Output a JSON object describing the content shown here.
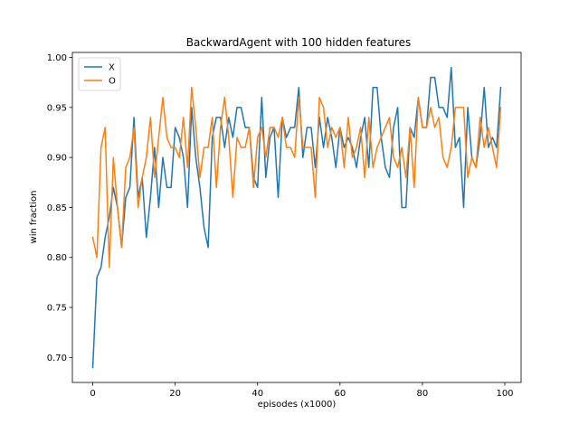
{
  "chart_data": {
    "type": "line",
    "title": "BackwardAgent with 100 hidden features",
    "xlabel": "episodes (x1000)",
    "ylabel": "win fraction",
    "xlim": [
      -4.95,
      103.95
    ],
    "ylim": [
      0.675,
      1.005
    ],
    "xticks": [
      0,
      20,
      40,
      60,
      80,
      100
    ],
    "yticks": [
      0.7,
      0.75,
      0.8,
      0.85,
      0.9,
      0.95,
      1.0
    ],
    "ytick_labels": [
      "0.70",
      "0.75",
      "0.80",
      "0.85",
      "0.90",
      "0.95",
      "1.00"
    ],
    "grid": false,
    "legend_position": "top-left",
    "series": [
      {
        "name": "X",
        "color": "#1f77b4",
        "values": [
          0.69,
          0.78,
          0.79,
          0.82,
          0.84,
          0.87,
          0.85,
          0.81,
          0.86,
          0.87,
          0.94,
          0.86,
          0.88,
          0.82,
          0.86,
          0.91,
          0.85,
          0.9,
          0.87,
          0.87,
          0.93,
          0.92,
          0.9,
          0.85,
          0.95,
          0.9,
          0.87,
          0.83,
          0.81,
          0.92,
          0.94,
          0.94,
          0.91,
          0.94,
          0.92,
          0.95,
          0.95,
          0.93,
          0.93,
          0.88,
          0.87,
          0.96,
          0.88,
          0.92,
          0.93,
          0.86,
          0.94,
          0.92,
          0.93,
          0.93,
          0.97,
          0.9,
          0.93,
          0.93,
          0.89,
          0.94,
          0.91,
          0.94,
          0.92,
          0.89,
          0.93,
          0.91,
          0.92,
          0.91,
          0.89,
          0.92,
          0.94,
          0.89,
          0.97,
          0.97,
          0.92,
          0.89,
          0.88,
          0.93,
          0.95,
          0.85,
          0.85,
          0.93,
          0.92,
          0.96,
          0.93,
          0.93,
          0.98,
          0.98,
          0.95,
          0.95,
          0.94,
          0.99,
          0.91,
          0.92,
          0.85,
          0.95,
          0.9,
          0.89,
          0.92,
          0.97,
          0.91,
          0.92,
          0.91,
          0.97
        ]
      },
      {
        "name": "O",
        "color": "#ff7f0e",
        "values": [
          0.82,
          0.8,
          0.91,
          0.93,
          0.79,
          0.9,
          0.85,
          0.81,
          0.89,
          0.9,
          0.93,
          0.85,
          0.88,
          0.9,
          0.94,
          0.88,
          0.92,
          0.96,
          0.92,
          0.91,
          0.91,
          0.9,
          0.94,
          0.89,
          0.97,
          0.93,
          0.88,
          0.91,
          0.91,
          0.94,
          0.87,
          0.93,
          0.96,
          0.92,
          0.86,
          0.92,
          0.91,
          0.91,
          0.93,
          0.87,
          0.92,
          0.93,
          0.9,
          0.93,
          0.93,
          0.92,
          0.94,
          0.91,
          0.91,
          0.9,
          0.96,
          0.91,
          0.91,
          0.91,
          0.86,
          0.96,
          0.95,
          0.91,
          0.93,
          0.92,
          0.93,
          0.89,
          0.94,
          0.9,
          0.91,
          0.93,
          0.88,
          0.94,
          0.89,
          0.91,
          0.92,
          0.93,
          0.94,
          0.9,
          0.89,
          0.91,
          0.88,
          0.93,
          0.87,
          0.96,
          0.93,
          0.93,
          0.95,
          0.93,
          0.94,
          0.9,
          0.89,
          0.91,
          0.95,
          0.95,
          0.95,
          0.88,
          0.9,
          0.89,
          0.94,
          0.91,
          0.93,
          0.91,
          0.89,
          0.95
        ]
      }
    ]
  }
}
